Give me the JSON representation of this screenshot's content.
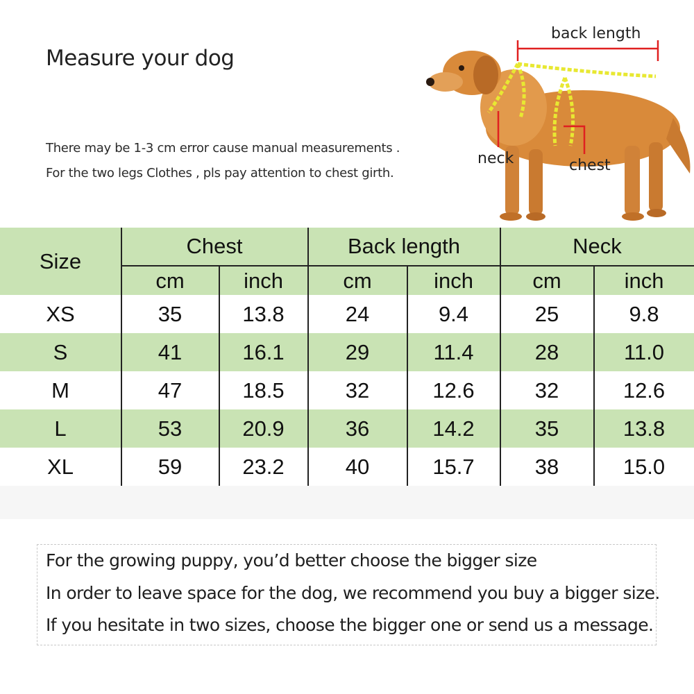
{
  "header": {
    "title": "Measure your dog",
    "note_lines": [
      "There may be 1-3 cm error cause manual measurements .",
      "For the two legs Clothes , pls pay attention to chest girth."
    ]
  },
  "illustration": {
    "labels": {
      "back_length": "back length",
      "neck": "neck",
      "chest": "chest"
    },
    "colors": {
      "dog_fur": "#d98a3a",
      "measure_line": "#e8e832",
      "marker": "#e02020"
    }
  },
  "size_table": {
    "row_header": "Size",
    "groups": [
      "Chest",
      "Back length",
      "Neck"
    ],
    "units": [
      "cm",
      "inch",
      "cm",
      "inch",
      "cm",
      "inch"
    ],
    "rows": [
      {
        "size": "XS",
        "values": [
          "35",
          "13.8",
          "24",
          "9.4",
          "25",
          "9.8"
        ]
      },
      {
        "size": "S",
        "values": [
          "41",
          "16.1",
          "29",
          "11.4",
          "28",
          "11.0"
        ]
      },
      {
        "size": "M",
        "values": [
          "47",
          "18.5",
          "32",
          "12.6",
          "32",
          "12.6"
        ]
      },
      {
        "size": "L",
        "values": [
          "53",
          "20.9",
          "36",
          "14.2",
          "35",
          "13.8"
        ]
      },
      {
        "size": "XL",
        "values": [
          "59",
          "23.2",
          "40",
          "15.7",
          "38",
          "15.0"
        ]
      }
    ],
    "colors": {
      "green_band": "#c9e3b4"
    }
  },
  "advice": {
    "lines": [
      "For the growing puppy, you’d better choose the bigger size",
      "In order to leave space for the dog, we recommend you buy a bigger size.",
      "If you  hesitate in two sizes, choose the bigger one or send us a message."
    ]
  }
}
